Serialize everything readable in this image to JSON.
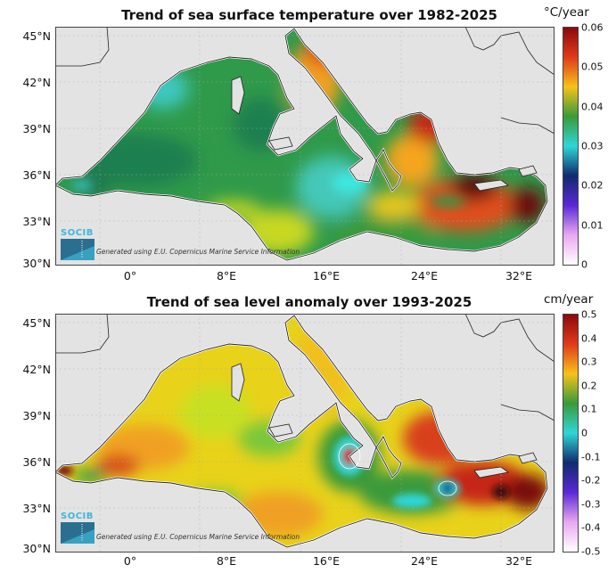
{
  "panels": [
    {
      "title": "Trend of sea surface temperature over 1982-2025",
      "unit": "°C/year",
      "colorbar_ticks": [
        "0.06",
        "0.05",
        "0.04",
        "0.03",
        "0.02",
        "0.01",
        "0"
      ],
      "colorbar_colors": [
        "#8b0a0a",
        "#e03a1a",
        "#f5c21a",
        "#3a9a3a",
        "#2fd6d6",
        "#0f2a6e",
        "#5a28d6",
        "#e8a8f0",
        "#ffffff"
      ]
    },
    {
      "title": "Trend of sea level anomaly over 1993-2025",
      "unit": "cm/year",
      "colorbar_ticks": [
        "0.5",
        "0.4",
        "0.3",
        "0.2",
        "0.1",
        "0",
        "-0.1",
        "-0.2",
        "-0.3",
        "-0.4",
        "-0.5"
      ],
      "colorbar_colors": [
        "#8b0a0a",
        "#e03a1a",
        "#f5c21a",
        "#3a9a3a",
        "#2fd6d6",
        "#0f2a6e",
        "#5a28d6",
        "#e8a8f0",
        "#ffffff"
      ]
    }
  ],
  "lat_labels": [
    "45°N",
    "42°N",
    "39°N",
    "36°N",
    "33°N",
    "30°N"
  ],
  "lon_labels": [
    "0°",
    "8°E",
    "16°E",
    "24°E",
    "32°E"
  ],
  "logo_text": "SOCIB",
  "credit": "Generated using E.U. Copernicus Marine Service Information",
  "colors": {
    "land": "#e3e3e3",
    "coast": "#222222"
  }
}
